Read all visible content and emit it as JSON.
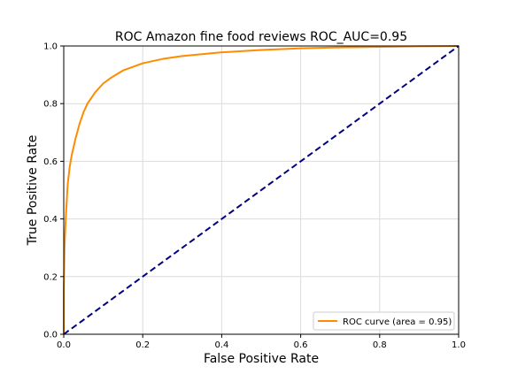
{
  "chart_data": {
    "type": "line",
    "title": "ROC Amazon fine food reviews ROC_AUC=0.95",
    "xlabel": "False Positive Rate",
    "ylabel": "True Positive Rate",
    "xlim": [
      0.0,
      1.0
    ],
    "ylim": [
      0.0,
      1.0
    ],
    "grid": true,
    "legend_placement": "lower right",
    "x_ticks": [
      "0.0",
      "0.2",
      "0.4",
      "0.6",
      "0.8",
      "1.0"
    ],
    "y_ticks": [
      "0.0",
      "0.2",
      "0.4",
      "0.6",
      "0.8",
      "1.0"
    ],
    "series": [
      {
        "name": "ROC curve (area = 0.95)",
        "color": "#ff8c00",
        "style": "solid",
        "x": [
          0.0,
          0.0,
          0.002,
          0.005,
          0.01,
          0.015,
          0.02,
          0.03,
          0.04,
          0.05,
          0.06,
          0.08,
          0.1,
          0.12,
          0.15,
          0.2,
          0.25,
          0.3,
          0.4,
          0.5,
          0.6,
          0.7,
          0.8,
          0.9,
          1.0
        ],
        "y": [
          0.0,
          0.15,
          0.3,
          0.4,
          0.52,
          0.58,
          0.62,
          0.68,
          0.73,
          0.77,
          0.8,
          0.84,
          0.87,
          0.89,
          0.915,
          0.94,
          0.955,
          0.965,
          0.978,
          0.986,
          0.992,
          0.995,
          0.997,
          0.999,
          1.0
        ]
      },
      {
        "name": "",
        "color": "#000080",
        "style": "dashed",
        "x": [
          0.0,
          1.0
        ],
        "y": [
          0.0,
          1.0
        ]
      }
    ]
  }
}
